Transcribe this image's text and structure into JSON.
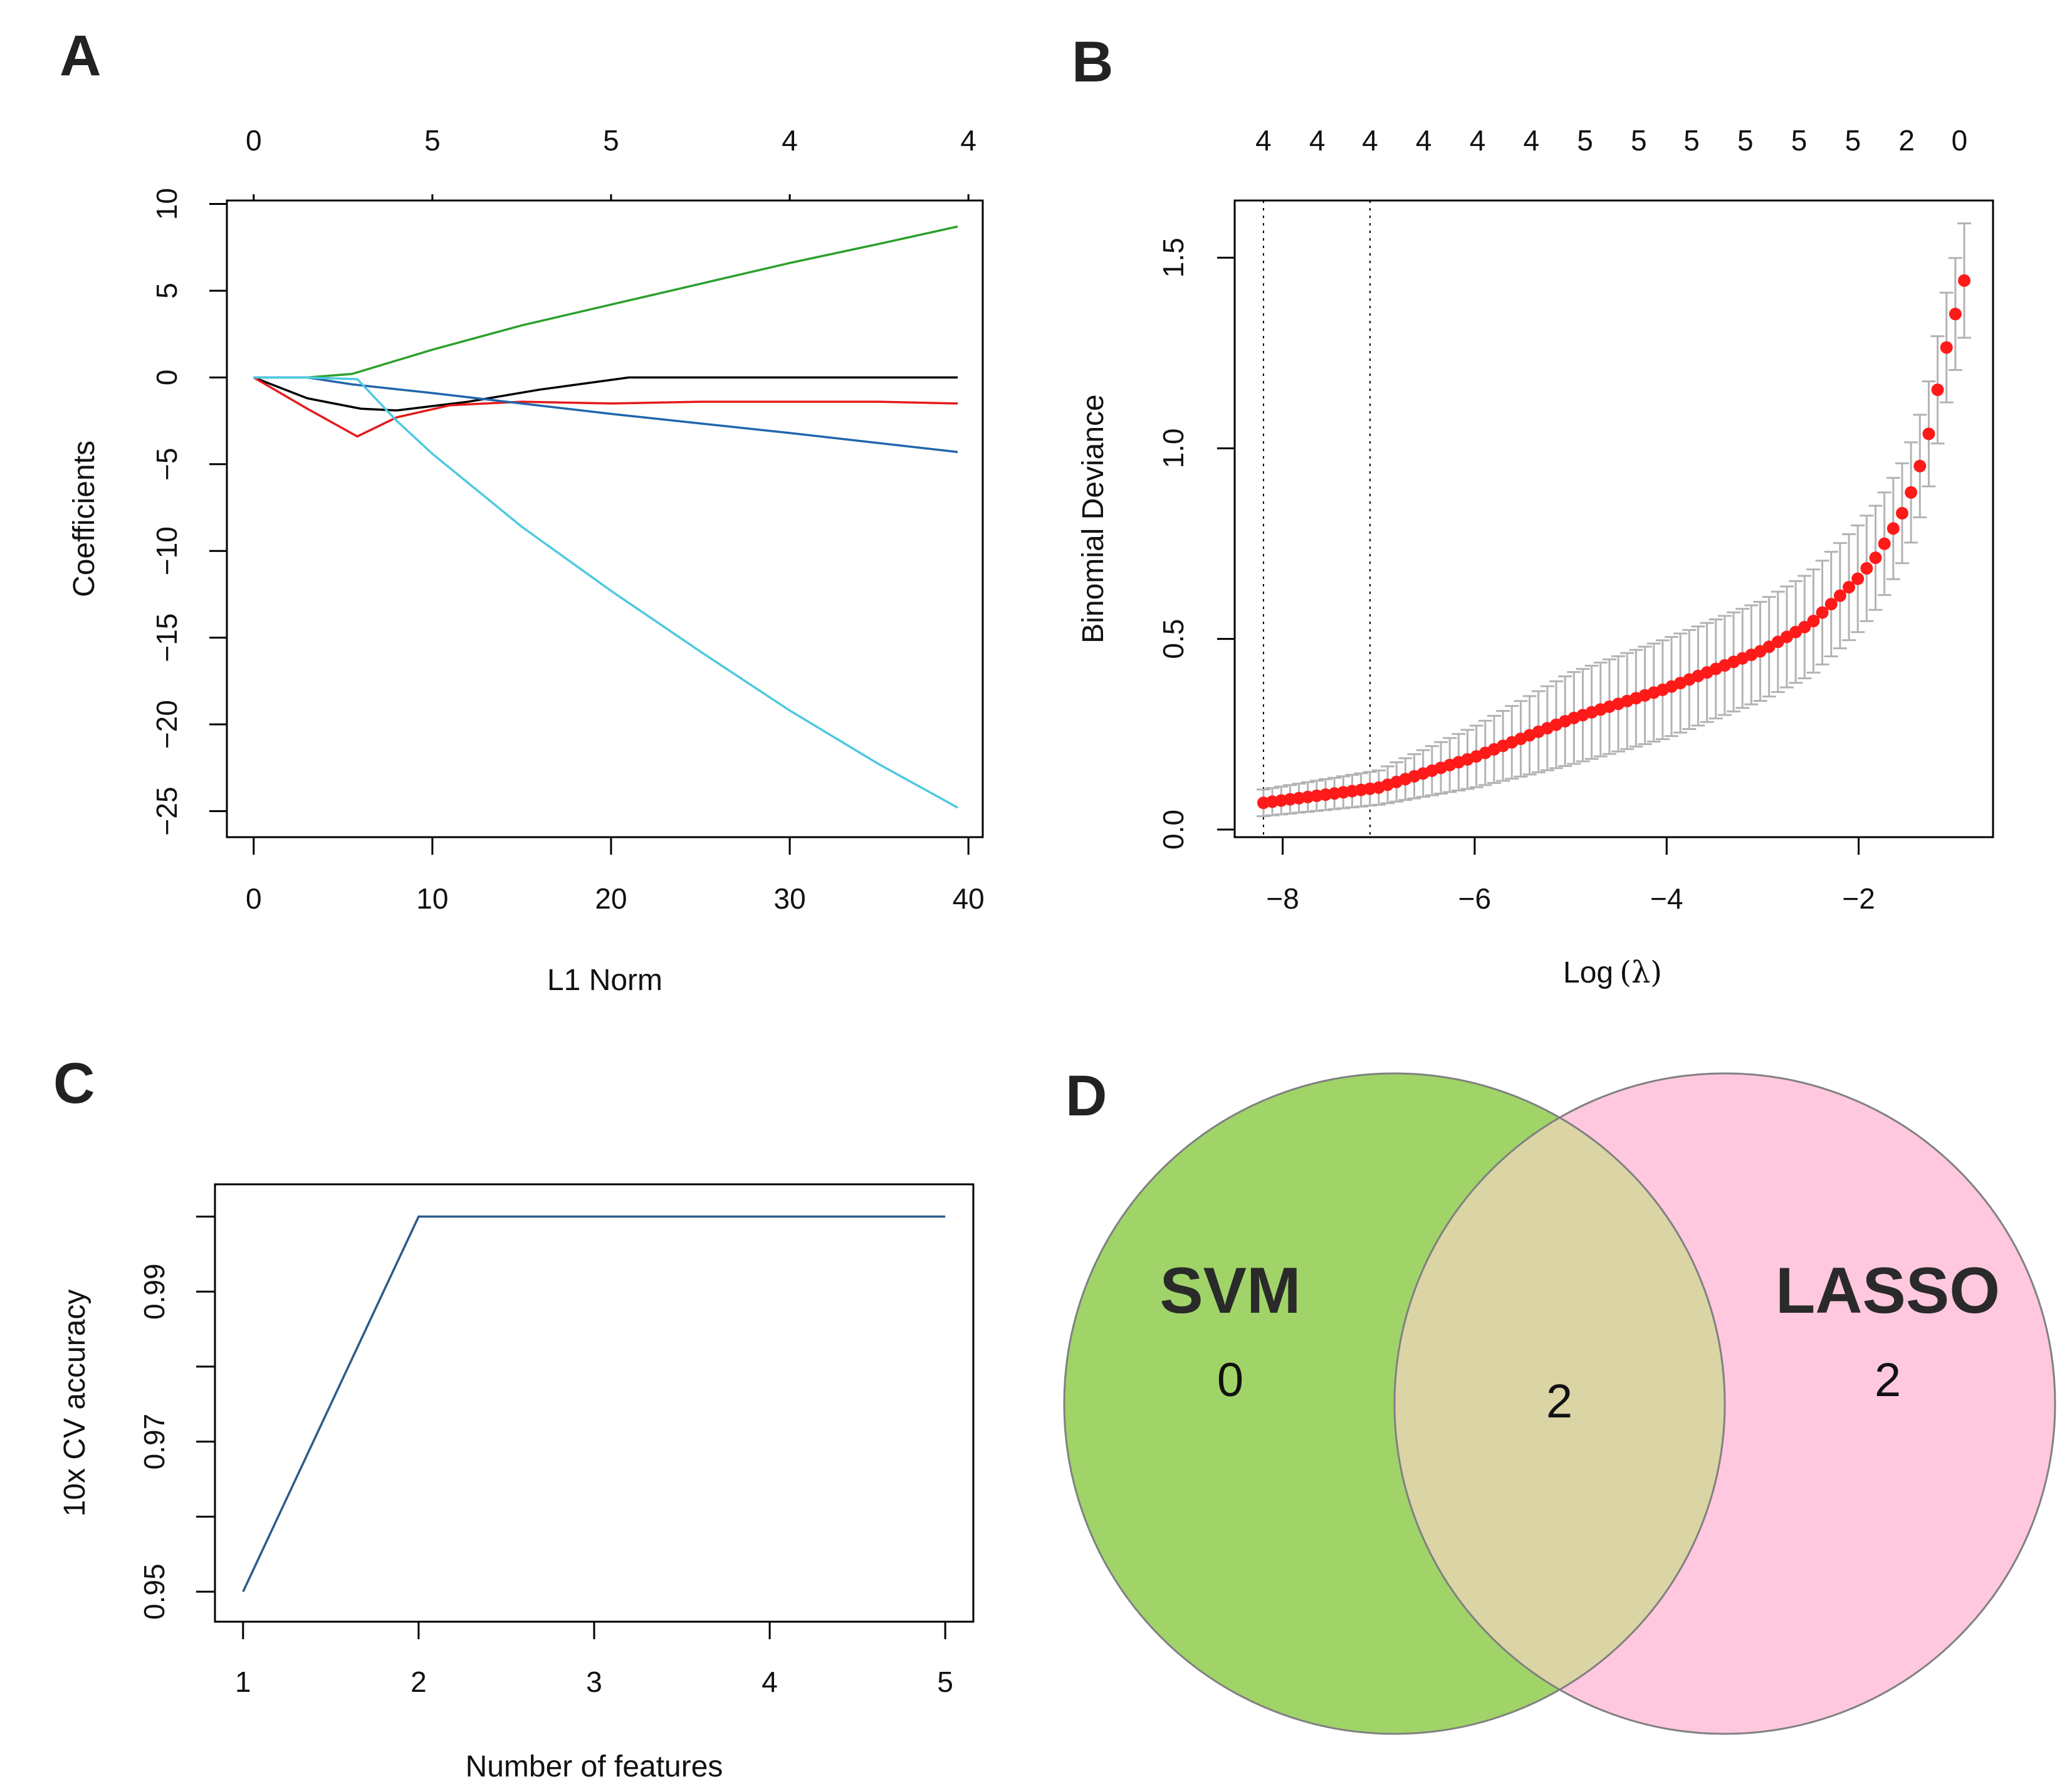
{
  "panels": {
    "a": {
      "letter": "A"
    },
    "b": {
      "letter": "B"
    },
    "c": {
      "letter": "C"
    },
    "d": {
      "letter": "D"
    }
  },
  "chart_data": [
    {
      "id": "A",
      "type": "line",
      "title": "",
      "xlabel": "L1 Norm",
      "ylabel": "Coefficients",
      "xlim": [
        -1.5,
        40.8
      ],
      "ylim": [
        -26.5,
        10.2
      ],
      "x_ticks": [
        0,
        10,
        20,
        30,
        40
      ],
      "y_ticks": [
        10,
        5,
        0,
        -5,
        -10,
        -15,
        -20,
        -25
      ],
      "top_axis": {
        "positions": [
          0,
          10,
          20,
          30,
          40
        ],
        "labels": [
          "0",
          "5",
          "5",
          "4",
          "4"
        ]
      },
      "series": [
        {
          "name": "green",
          "color": "#2ca02c",
          "x": [
            0,
            3,
            5.5,
            10,
            15,
            20,
            25,
            30,
            35,
            39.4
          ],
          "y": [
            0,
            0,
            0.2,
            1.6,
            3.0,
            4.2,
            5.4,
            6.6,
            7.7,
            8.7
          ]
        },
        {
          "name": "black",
          "color": "#000000",
          "x": [
            0,
            3,
            6,
            8,
            12,
            16,
            21,
            25,
            30,
            39.4
          ],
          "y": [
            0,
            -1.2,
            -1.8,
            -1.9,
            -1.4,
            -0.7,
            0,
            0,
            0,
            0
          ]
        },
        {
          "name": "red",
          "color": "#e41a1c",
          "x": [
            0,
            3,
            5.8,
            8,
            11,
            15,
            20,
            25,
            30,
            35,
            39.4
          ],
          "y": [
            0,
            -1.8,
            -3.4,
            -2.3,
            -1.6,
            -1.4,
            -1.5,
            -1.4,
            -1.4,
            -1.4,
            -1.5
          ]
        },
        {
          "name": "blue",
          "color": "#2166ac",
          "x": [
            0,
            3,
            5.5,
            10,
            20,
            30,
            39.4
          ],
          "y": [
            0,
            0,
            -0.4,
            -0.9,
            -2.1,
            -3.2,
            -4.3
          ]
        },
        {
          "name": "cyan",
          "color": "#4dc9e0",
          "x": [
            0,
            3,
            5.8,
            8,
            10,
            15,
            20,
            25,
            30,
            35,
            39.4
          ],
          "y": [
            0,
            0,
            -0.1,
            -2.5,
            -4.4,
            -8.6,
            -12.3,
            -15.8,
            -19.2,
            -22.3,
            -24.8
          ]
        }
      ]
    },
    {
      "id": "B",
      "type": "scatter",
      "title": "",
      "xlabel_text": "Log",
      "xlabel_symbol": "(λ)",
      "ylabel": "Binomial Deviance",
      "xlim": [
        -8.5,
        -0.6
      ],
      "ylim": [
        -0.02,
        1.65
      ],
      "x_ticks": [
        -8,
        -6,
        -4,
        -2
      ],
      "x_tick_labels": [
        "−8",
        "−6",
        "−4",
        "−2"
      ],
      "y_ticks": [
        0.0,
        0.5,
        1.0,
        1.5
      ],
      "y_tick_labels": [
        "0.0",
        "0.5",
        "1.0",
        "1.5"
      ],
      "top_axis": {
        "positions": [
          -8.2,
          -7.64,
          -7.09,
          -6.53,
          -5.97,
          -5.41,
          -4.85,
          -4.29,
          -3.74,
          -3.18,
          -2.62,
          -2.06,
          -1.5,
          -0.95
        ],
        "labels": [
          "4",
          "4",
          "4",
          "4",
          "4",
          "4",
          "5",
          "5",
          "5",
          "5",
          "5",
          "5",
          "2",
          "0"
        ]
      },
      "vlines": [
        -8.2,
        -7.09
      ],
      "point_color": "#ff1a1a",
      "errorbar_color": "#b3b3b3",
      "x_start": -8.2,
      "x_end": -0.9,
      "n_points": 80,
      "curve": {
        "x": [
          -8.2,
          -7.0,
          -6.0,
          -5.0,
          -4.0,
          -3.0,
          -2.5,
          -2.0,
          -1.8,
          -1.5,
          -1.3,
          -1.1,
          -0.9
        ],
        "y": [
          0.07,
          0.11,
          0.19,
          0.29,
          0.37,
          0.47,
          0.54,
          0.66,
          0.72,
          0.85,
          1.0,
          1.25,
          1.44
        ]
      },
      "error_halfwidth": {
        "x": [
          -8.2,
          -7.0,
          -6.0,
          -5.0,
          -4.0,
          -3.0,
          -2.0,
          -1.5,
          -1.2,
          -0.9
        ],
        "y": [
          0.035,
          0.045,
          0.08,
          0.12,
          0.13,
          0.13,
          0.14,
          0.13,
          0.14,
          0.15
        ]
      }
    },
    {
      "id": "C",
      "type": "line",
      "title": "",
      "xlabel": "Number of features",
      "ylabel": "10x CV accuracy",
      "xlim": [
        0.84,
        5.16
      ],
      "ylim": [
        0.946,
        1.0043
      ],
      "x_ticks": [
        1,
        2,
        3,
        4,
        5
      ],
      "x_tick_labels": [
        "1",
        "2",
        "3",
        "4",
        "5"
      ],
      "y_ticks": [
        0.95,
        0.96,
        0.97,
        0.98,
        0.99,
        1.0
      ],
      "y_tick_labels": [
        "0.95",
        "",
        "0.97",
        "",
        "0.99",
        ""
      ],
      "series": [
        {
          "name": "accuracy",
          "color": "#2b5c8a",
          "x": [
            1,
            2,
            3,
            4,
            5
          ],
          "y": [
            0.95,
            1.0,
            1.0,
            1.0,
            1.0
          ]
        }
      ]
    }
  ],
  "venn": {
    "svm": {
      "name": "SVM",
      "only_count": "0",
      "color": "#a0d468"
    },
    "lasso": {
      "name": "LASSO",
      "only_count": "2",
      "color": "#ffc8de"
    },
    "overlap": {
      "count": "2",
      "color": "#dbd5a6"
    }
  }
}
